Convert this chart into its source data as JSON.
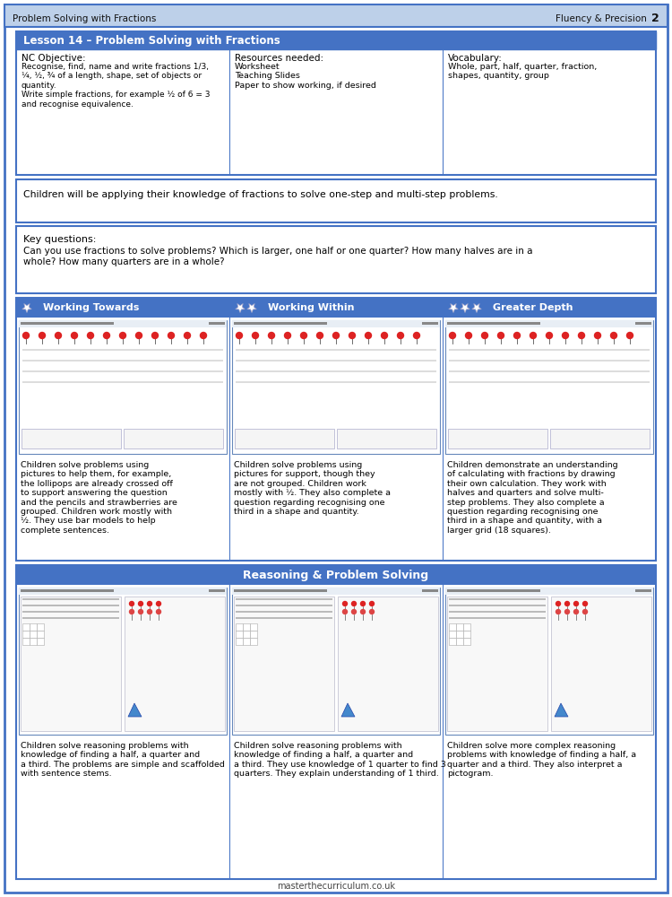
{
  "page_title_left": "Problem Solving with Fractions",
  "page_title_right": "Fluency & Precision",
  "page_number": "2",
  "header_bg": "#bdd0e9",
  "header_border": "#4472c4",
  "lesson_title": "Lesson 14 – Problem Solving with Fractions",
  "lesson_title_bg": "#4472c4",
  "lesson_title_color": "#ffffff",
  "nc_objective_title": "NC Objective:",
  "nc_objective_text": "Recognise, find, name and write fractions 1/3,\n¼, ½, ¾ of a length, shape, set of objects or\nquantity.\nWrite simple fractions, for example ½ of 6 = 3\nand recognise equivalence.",
  "resources_title": "Resources needed:",
  "resources_text": "Worksheet\nTeaching Slides\nPaper to show working, if desired",
  "vocabulary_title": "Vocabulary:",
  "vocabulary_text": "Whole, part, half, quarter, fraction,\nshapes, quantity, group",
  "applying_text": "Children will be applying their knowledge of fractions to solve one-step and multi-step problems.",
  "key_questions_title": "Key questions:",
  "key_questions_text": "Can you use fractions to solve problems? Which is larger, one half or one quarter? How many halves are in a\nwhole? How many quarters are in a whole?",
  "working_towards_title": "Working Towards",
  "working_within_title": "Working Within",
  "greater_depth_title": "Greater Depth",
  "col_header_bg": "#4472c4",
  "col_header_color": "#ffffff",
  "wt_desc": "Children solve problems using\npictures to help them, for example,\nthe lollipops are already crossed off\nto support answering the question\nand the pencils and strawberries are\ngrouped. Children work mostly with\n½. They use bar models to help\ncomplete sentences.",
  "ww_desc": "Children solve problems using\npictures for support, though they\nare not grouped. Children work\nmostly with ½. They also complete a\nquestion regarding recognising one\nthird in a shape and quantity.",
  "gd_desc": "Children demonstrate an understanding\nof calculating with fractions by drawing\ntheir own calculation. They work with\nhalves and quarters and solve multi-\nstep problems. They also complete a\nquestion regarding recognising one\nthird in a shape and quantity, with a\nlarger grid (18 squares).",
  "reasoning_title": "Reasoning & Problem Solving",
  "reasoning_title_bg": "#4472c4",
  "reasoning_title_color": "#ffffff",
  "rps_wt_desc": "Children solve reasoning problems with\nknowledge of finding a half, a quarter and\na third. The problems are simple and scaffolded\nwith sentence stems.",
  "rps_ww_desc": "Children solve reasoning problems with\nknowledge of finding a half, a quarter and\na third. They use knowledge of 1 quarter to find 3\nquarters. They explain understanding of 1 third.",
  "rps_gd_desc": "Children solve more complex reasoning\nproblems with knowledge of finding a half, a\nquarter and a third. They also interpret a\npictogram.",
  "footer_text": "masterthecurriculum.co.uk",
  "border_color": "#4472c4",
  "box_border": "#4472c4",
  "worksheet_bg": "#e8eef5",
  "worksheet_inner": "#ffffff",
  "worksheet_border": "#aaaacc"
}
